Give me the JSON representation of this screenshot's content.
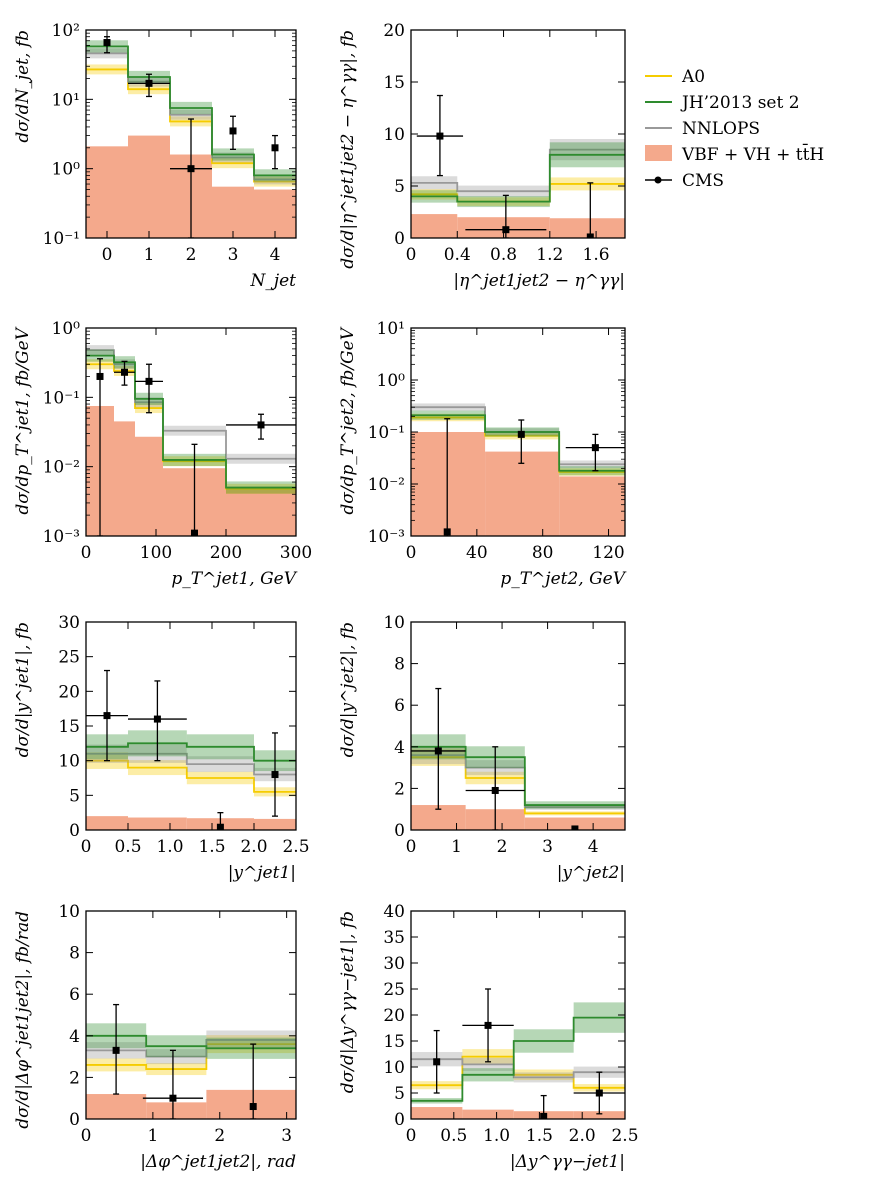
{
  "legend": {
    "items": [
      {
        "label": "A0",
        "color": "#f5cc00",
        "kind": "line"
      },
      {
        "label": "JH’2013 set 2",
        "color": "#2e8b2e",
        "kind": "line"
      },
      {
        "label": "NNLOPS",
        "color": "#999999",
        "kind": "line"
      },
      {
        "label": "VBF + VH + tt̄H",
        "color": "#f4a98c",
        "kind": "fill"
      },
      {
        "label": "CMS",
        "color": "#000000",
        "kind": "marker"
      }
    ]
  },
  "colors": {
    "a0": "#f5cc00",
    "jh": "#2e8b2e",
    "nnlops": "#999999",
    "bkg": "#f4a98c",
    "cms": "#000000"
  },
  "chart_data": [
    {
      "type": "step",
      "xlabel": "N_jet",
      "ylabel": "dσ/dN_jet, fb",
      "xlim": [
        -0.5,
        4.5
      ],
      "ylim": [
        0.1,
        100
      ],
      "ylog": true,
      "xticks": [
        0,
        1,
        2,
        3,
        4
      ],
      "xtick_labels": [
        "0",
        "1",
        "2",
        "3",
        "4"
      ],
      "yticks": [
        0.1,
        1,
        10,
        100
      ],
      "ytick_labels": [
        "10⁻¹",
        "10⁰",
        "10¹",
        "10²"
      ],
      "bins": [
        -0.5,
        0.5,
        1.5,
        2.5,
        3.5,
        4.5
      ],
      "series": {
        "bkg": [
          2.1,
          3.0,
          1.6,
          0.55,
          0.5
        ],
        "a0": [
          27,
          14,
          4.8,
          1.2,
          0.65
        ],
        "jh": [
          58,
          21,
          7.5,
          1.6,
          0.8
        ],
        "nnlops": [
          46,
          18,
          6.0,
          1.45,
          0.7
        ]
      },
      "cms": {
        "x": [
          0,
          1,
          2,
          3,
          4
        ],
        "y": [
          66,
          17,
          1.0,
          3.5,
          2.0
        ],
        "ylo": [
          47,
          11,
          0.1,
          1.9,
          1.0
        ],
        "yhi": [
          80,
          23,
          5.2,
          5.7,
          3.0
        ],
        "xerr": [
          0,
          0.5,
          0.5,
          0,
          0
        ]
      }
    },
    {
      "type": "step",
      "xlabel": "|η^jet1jet2 − η^γγ|",
      "ylabel": "dσ/d|η^jet1jet2 − η^γγ|, fb",
      "xlim": [
        0,
        1.85
      ],
      "ylim": [
        0,
        20
      ],
      "ylog": false,
      "xticks": [
        0,
        0.4,
        0.8,
        1.2,
        1.6
      ],
      "xtick_labels": [
        "0",
        "0.4",
        "0.8",
        "1.2",
        "1.6"
      ],
      "yticks": [
        0,
        5,
        10,
        15,
        20
      ],
      "ytick_labels": [
        "0",
        "5",
        "10",
        "15",
        "20"
      ],
      "bins": [
        0,
        0.4,
        1.2,
        1.85
      ],
      "series": {
        "bkg": [
          2.3,
          2.0,
          1.9
        ],
        "a0": [
          4.2,
          3.5,
          5.2
        ],
        "jh": [
          4.0,
          3.5,
          8.0
        ],
        "nnlops": [
          5.3,
          4.5,
          8.5
        ]
      },
      "cms": {
        "x": [
          0.25,
          0.82,
          1.55
        ],
        "y": [
          9.8,
          0.8,
          0.1
        ],
        "ylo": [
          6.0,
          0,
          0
        ],
        "yhi": [
          13.7,
          4.1,
          5.3
        ],
        "xerr": [
          0.2,
          0.35,
          0
        ]
      }
    },
    {
      "type": "step",
      "xlabel": "p_T^jet1, GeV",
      "ylabel": "dσ/dp_T^jet1, fb/GeV",
      "xlim": [
        0,
        300
      ],
      "ylim": [
        0.001,
        1
      ],
      "ylog": true,
      "xticks": [
        0,
        100,
        200,
        300
      ],
      "xtick_labels": [
        "0",
        "100",
        "200",
        "300"
      ],
      "yticks": [
        0.001,
        0.01,
        0.1,
        1
      ],
      "ytick_labels": [
        "10⁻³",
        "10⁻²",
        "10⁻¹",
        "10⁰"
      ],
      "bins": [
        0,
        40,
        70,
        110,
        200,
        300
      ],
      "series": {
        "bkg": [
          0.075,
          0.045,
          0.027,
          0.0095,
          0.0048
        ],
        "a0": [
          0.3,
          0.24,
          0.07,
          0.012,
          0.0048
        ],
        "jh": [
          0.4,
          0.32,
          0.095,
          0.0125,
          0.005
        ],
        "nnlops": [
          0.48,
          0.3,
          0.085,
          0.033,
          0.013
        ]
      },
      "cms": {
        "x": [
          20,
          55,
          90,
          155,
          250
        ],
        "y": [
          0.2,
          0.23,
          0.17,
          0.0011,
          0.04
        ],
        "ylo": [
          0.001,
          0.15,
          0.06,
          0.001,
          0.025
        ],
        "yhi": [
          0.36,
          0.33,
          0.3,
          0.021,
          0.057
        ],
        "xerr": [
          0,
          15,
          20,
          0,
          50
        ]
      }
    },
    {
      "type": "step",
      "xlabel": "p_T^jet2, GeV",
      "ylabel": "dσ/dp_T^jet2, fb/GeV",
      "xlim": [
        0,
        130
      ],
      "ylim": [
        0.001,
        10
      ],
      "ylog": true,
      "xticks": [
        0,
        40,
        80,
        120
      ],
      "xtick_labels": [
        "0",
        "40",
        "80",
        "120"
      ],
      "yticks": [
        0.001,
        0.01,
        0.1,
        1,
        10
      ],
      "ytick_labels": [
        "10⁻³",
        "10⁻²",
        "10⁻¹",
        "10⁰",
        "10¹"
      ],
      "bins": [
        0,
        45,
        90,
        130
      ],
      "series": {
        "bkg": [
          0.1,
          0.042,
          0.014
        ],
        "a0": [
          0.19,
          0.085,
          0.017
        ],
        "jh": [
          0.21,
          0.1,
          0.018
        ],
        "nnlops": [
          0.3,
          0.1,
          0.024
        ]
      },
      "cms": {
        "x": [
          22,
          67,
          112
        ],
        "y": [
          0.0012,
          0.09,
          0.05
        ],
        "ylo": [
          0.001,
          0.025,
          0.018
        ],
        "yhi": [
          0.18,
          0.17,
          0.09
        ],
        "xerr": [
          0,
          0,
          18
        ]
      }
    },
    {
      "type": "step",
      "xlabel": "|y^jet1|",
      "ylabel": "dσ/d|y^jet1|, fb",
      "xlim": [
        0,
        2.5
      ],
      "ylim": [
        0,
        30
      ],
      "ylog": false,
      "xticks": [
        0,
        0.5,
        1,
        1.5,
        2,
        2.5
      ],
      "xtick_labels": [
        "0",
        "0.5",
        "1.0",
        "1.5",
        "2.0",
        "2.5"
      ],
      "yticks": [
        0,
        5,
        10,
        15,
        20,
        25,
        30
      ],
      "ytick_labels": [
        "0",
        "5",
        "10",
        "15",
        "20",
        "25",
        "30"
      ],
      "bins": [
        0,
        0.5,
        1.2,
        2.0,
        2.5
      ],
      "series": {
        "bkg": [
          2.0,
          1.8,
          1.7,
          1.6
        ],
        "a0": [
          10,
          9,
          7.5,
          5.5
        ],
        "jh": [
          12,
          12.5,
          12,
          10
        ],
        "nnlops": [
          11,
          11,
          9.5,
          8
        ]
      },
      "cms": {
        "x": [
          0.25,
          0.85,
          1.6,
          2.25
        ],
        "y": [
          16.5,
          16,
          0.4,
          8
        ],
        "ylo": [
          10,
          10,
          0,
          2
        ],
        "yhi": [
          23,
          21.5,
          2.5,
          14
        ],
        "xerr": [
          0.25,
          0.35,
          0,
          0
        ]
      }
    },
    {
      "type": "step",
      "xlabel": "|y^jet2|",
      "ylabel": "dσ/d|y^jet2|, fb",
      "xlim": [
        0,
        4.7
      ],
      "ylim": [
        0,
        10
      ],
      "ylog": false,
      "xticks": [
        0,
        1,
        2,
        3,
        4
      ],
      "xtick_labels": [
        "0",
        "1",
        "2",
        "3",
        "4"
      ],
      "yticks": [
        0,
        2,
        4,
        6,
        8,
        10
      ],
      "ytick_labels": [
        "0",
        "2",
        "4",
        "6",
        "8",
        "10"
      ],
      "bins": [
        0,
        1.2,
        2.5,
        4.7
      ],
      "series": {
        "bkg": [
          1.2,
          1.0,
          0.6
        ],
        "a0": [
          3.5,
          2.5,
          0.8
        ],
        "jh": [
          4.0,
          3.5,
          1.2
        ],
        "nnlops": [
          3.6,
          3.0,
          1.1
        ]
      },
      "cms": {
        "x": [
          0.6,
          1.85,
          3.6
        ],
        "y": [
          3.8,
          1.9,
          0.05
        ],
        "ylo": [
          1.0,
          0,
          0
        ],
        "yhi": [
          6.8,
          4.0,
          0.15
        ],
        "xerr": [
          0.6,
          0.65,
          0
        ]
      }
    },
    {
      "type": "step",
      "xlabel": "|Δφ^jet1jet2|, rad",
      "ylabel": "dσ/d|Δφ^jet1jet2|, fb/rad",
      "xlim": [
        0,
        3.14
      ],
      "ylim": [
        0,
        10
      ],
      "ylog": false,
      "xticks": [
        0,
        1,
        2,
        3
      ],
      "xtick_labels": [
        "0",
        "1",
        "2",
        "3"
      ],
      "yticks": [
        0,
        2,
        4,
        6,
        8,
        10
      ],
      "ytick_labels": [
        "0",
        "2",
        "4",
        "6",
        "8",
        "10"
      ],
      "bins": [
        0,
        0.9,
        1.8,
        3.14
      ],
      "series": {
        "bkg": [
          1.2,
          0.8,
          1.4
        ],
        "a0": [
          2.6,
          2.4,
          3.6
        ],
        "jh": [
          4.0,
          3.5,
          3.4
        ],
        "nnlops": [
          3.3,
          3.0,
          3.8
        ]
      },
      "cms": {
        "x": [
          0.45,
          1.3,
          2.5
        ],
        "y": [
          3.3,
          1.0,
          0.6
        ],
        "ylo": [
          1.2,
          0,
          0
        ],
        "yhi": [
          5.5,
          3.3,
          3.6
        ],
        "xerr": [
          0,
          0.45,
          0
        ]
      }
    },
    {
      "type": "step",
      "xlabel": "|Δy^γγ−jet1|",
      "ylabel": "dσ/d|Δy^γγ−jet1|, fb",
      "xlim": [
        0,
        2.5
      ],
      "ylim": [
        0,
        40
      ],
      "ylog": false,
      "xticks": [
        0,
        0.5,
        1,
        1.5,
        2,
        2.5
      ],
      "xtick_labels": [
        "0",
        "0.5",
        "1.0",
        "1.5",
        "2.0",
        "2.5"
      ],
      "yticks": [
        0,
        5,
        10,
        15,
        20,
        25,
        30,
        35,
        40
      ],
      "ytick_labels": [
        "0",
        "5",
        "10",
        "15",
        "20",
        "25",
        "30",
        "35",
        "40"
      ],
      "bins": [
        0,
        0.6,
        1.2,
        1.9,
        2.5
      ],
      "series": {
        "bkg": [
          2.3,
          1.8,
          1.5,
          1.5
        ],
        "a0": [
          6.5,
          12,
          8.5,
          6
        ],
        "jh": [
          3.5,
          8.5,
          15,
          19.5
        ],
        "nnlops": [
          11.5,
          10.5,
          8.0,
          9.0
        ]
      },
      "cms": {
        "x": [
          0.3,
          0.9,
          1.55,
          2.2
        ],
        "y": [
          11,
          18,
          0.5,
          5
        ],
        "ylo": [
          5,
          11,
          0,
          1
        ],
        "yhi": [
          17,
          25,
          4.5,
          9
        ],
        "xerr": [
          0,
          0.3,
          0,
          0.3
        ]
      }
    }
  ]
}
